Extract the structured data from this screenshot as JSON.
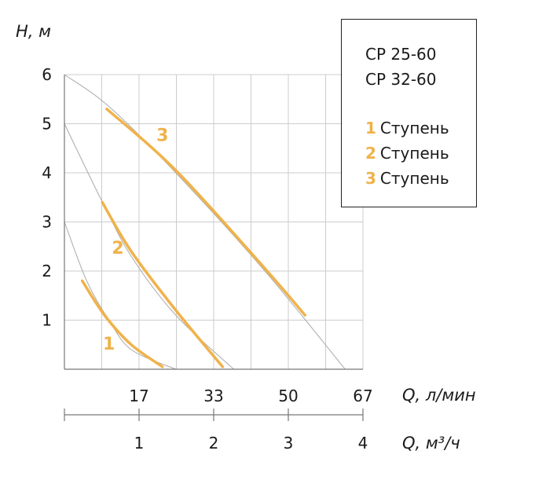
{
  "chart_data": {
    "type": "line",
    "ylabel": "H, м",
    "xlabel": "Q, л/мин",
    "x2label": "Q, м³/ч",
    "ylim": [
      0,
      6
    ],
    "y_ticks": [
      "1",
      "2",
      "3",
      "4",
      "5",
      "6"
    ],
    "xlim": [
      0,
      67
    ],
    "x_ticks": [
      "17",
      "33",
      "50",
      "67"
    ],
    "x2_ticks": [
      "1",
      "2",
      "3",
      "4"
    ],
    "grid": true,
    "colors": {
      "curve": "#f0b24a",
      "envelope": "#aaaaaa",
      "grid": "#cccccc",
      "axis": "#777777"
    },
    "series": [
      {
        "name": "1",
        "label_pos": [
          10,
          0.4
        ],
        "envelope": [
          [
            0,
            3
          ],
          [
            5,
            1.8
          ],
          [
            10,
            1
          ],
          [
            15,
            0.4
          ],
          [
            25,
            0
          ]
        ],
        "x": [
          4,
          9,
          15,
          22
        ],
        "y": [
          1.8,
          1.1,
          0.5,
          0.05
        ]
      },
      {
        "name": "2",
        "label_pos": [
          12,
          2.35
        ],
        "envelope": [
          [
            0,
            5
          ],
          [
            8,
            3.5
          ],
          [
            15,
            2.3
          ],
          [
            25,
            1.1
          ],
          [
            38,
            0
          ]
        ],
        "x": [
          8.5,
          15,
          25,
          35.5
        ],
        "y": [
          3.4,
          2.4,
          1.2,
          0.05
        ]
      },
      {
        "name": "3",
        "label_pos": [
          22,
          4.65
        ],
        "envelope": [
          [
            0,
            6
          ],
          [
            10,
            5.35
          ],
          [
            25,
            4
          ],
          [
            45,
            2
          ],
          [
            63,
            0
          ]
        ],
        "x": [
          9.5,
          25,
          45,
          54
        ],
        "y": [
          5.3,
          4.05,
          2.05,
          1.1
        ]
      }
    ]
  },
  "legend": {
    "models": [
      "CP 25-60",
      "CP 32-60"
    ],
    "items": [
      {
        "num": "1",
        "label": "Ступень"
      },
      {
        "num": "2",
        "label": "Ступень"
      },
      {
        "num": "3",
        "label": "Ступень"
      }
    ]
  }
}
